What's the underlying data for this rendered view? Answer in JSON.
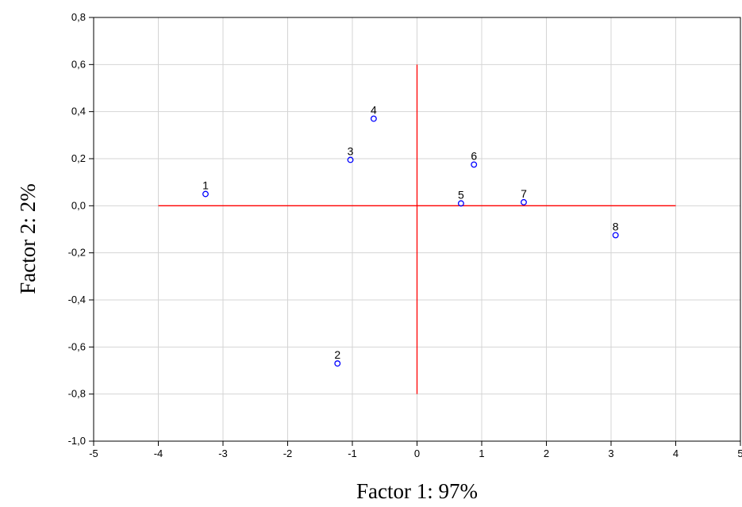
{
  "chart_data": {
    "type": "scatter",
    "title": "",
    "xlabel": "Factor 1: 97%",
    "ylabel": "Factor 2: 2%",
    "xlim": [
      -5,
      5
    ],
    "ylim": [
      -1.0,
      0.8
    ],
    "x_ticks": [
      -5,
      -4,
      -3,
      -2,
      -1,
      0,
      1,
      2,
      3,
      4,
      5
    ],
    "x_tick_labels": [
      "-5",
      "-4",
      "-3",
      "-2",
      "-1",
      "0",
      "1",
      "2",
      "3",
      "4",
      "5"
    ],
    "y_ticks": [
      -1.0,
      -0.8,
      -0.6,
      -0.4,
      -0.2,
      0.0,
      0.2,
      0.4,
      0.6,
      0.8
    ],
    "y_tick_labels": [
      "-1,0",
      "-0,8",
      "-0,6",
      "-0,4",
      "-0,2",
      "0,0",
      "0,2",
      "0,4",
      "0,6",
      "0,8"
    ],
    "grid": true,
    "point_color": "#0000ff",
    "reference_line_color": "#ff0000",
    "reference_lines": {
      "horizontal": {
        "y": 0.0,
        "x_from": -4,
        "x_to": 4
      },
      "vertical": {
        "x": 0.0,
        "y_from": -0.8,
        "y_to": 0.6
      }
    },
    "points": [
      {
        "label": "1",
        "x": -3.27,
        "y": 0.05
      },
      {
        "label": "2",
        "x": -1.23,
        "y": -0.67
      },
      {
        "label": "3",
        "x": -1.03,
        "y": 0.195
      },
      {
        "label": "4",
        "x": -0.67,
        "y": 0.37
      },
      {
        "label": "5",
        "x": 0.68,
        "y": 0.01
      },
      {
        "label": "6",
        "x": 0.88,
        "y": 0.175
      },
      {
        "label": "7",
        "x": 1.65,
        "y": 0.015
      },
      {
        "label": "8",
        "x": 3.07,
        "y": -0.125
      }
    ]
  }
}
